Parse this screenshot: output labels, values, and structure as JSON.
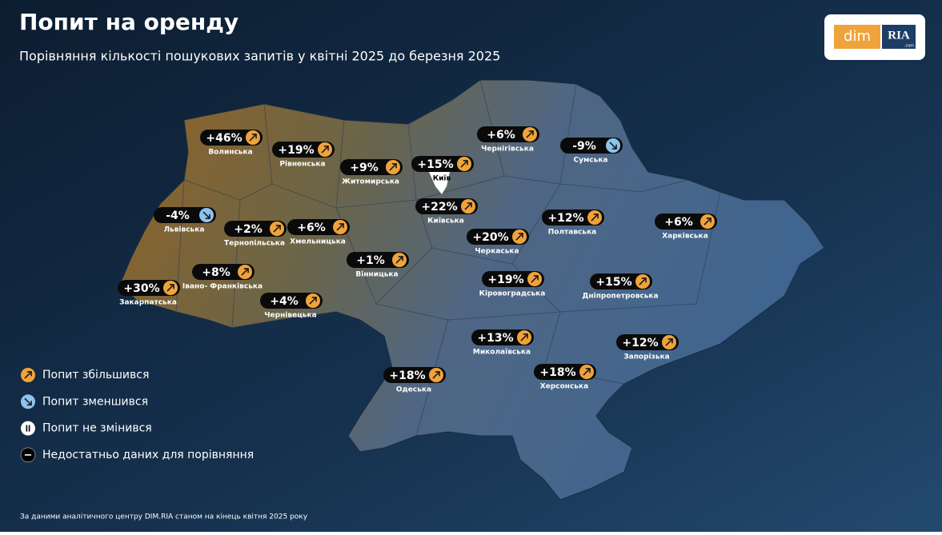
{
  "header": {
    "title": "Попит на оренду",
    "subtitle": "Порівняння кількості пошукових запитів у квітні 2025 до березня 2025"
  },
  "logo": {
    "left": "dim",
    "right": "RIA",
    "suffix": ".com"
  },
  "regions": [
    {
      "name": "Волинська",
      "value": "+46%",
      "trend": "up"
    },
    {
      "name": "Рівненська",
      "value": "+19%",
      "trend": "up"
    },
    {
      "name": "Житомирська",
      "value": "+9%",
      "trend": "up"
    },
    {
      "name": "Київ",
      "value": "+15%",
      "trend": "up"
    },
    {
      "name": "Чернігівська",
      "value": "+6%",
      "trend": "up"
    },
    {
      "name": "Сумська",
      "value": "-9%",
      "trend": "down"
    },
    {
      "name": "Київська",
      "value": "+22%",
      "trend": "up"
    },
    {
      "name": "Полтавська",
      "value": "+12%",
      "trend": "up"
    },
    {
      "name": "Харківська",
      "value": "+6%",
      "trend": "up"
    },
    {
      "name": "Львівська",
      "value": "-4%",
      "trend": "down"
    },
    {
      "name": "Тернопільська",
      "value": "+2%",
      "trend": "up"
    },
    {
      "name": "Хмельницька",
      "value": "+6%",
      "trend": "up"
    },
    {
      "name": "Черкаська",
      "value": "+20%",
      "trend": "up"
    },
    {
      "name": "Вінницька",
      "value": "+1%",
      "trend": "up"
    },
    {
      "name": "Закарпатська",
      "value": "+30%",
      "trend": "up"
    },
    {
      "name": "Івано- Франківська",
      "value": "+8%",
      "trend": "up"
    },
    {
      "name": "Чернівецька",
      "value": "+4%",
      "trend": "up"
    },
    {
      "name": "Кіровоградська",
      "value": "+19%",
      "trend": "up"
    },
    {
      "name": "Дніпропетровська",
      "value": "+15%",
      "trend": "up"
    },
    {
      "name": "Миколаївська",
      "value": "+13%",
      "trend": "up"
    },
    {
      "name": "Запорізька",
      "value": "+12%",
      "trend": "up"
    },
    {
      "name": "Одеська",
      "value": "+18%",
      "trend": "up"
    },
    {
      "name": "Херсонська",
      "value": "+18%",
      "trend": "up"
    }
  ],
  "legend": [
    {
      "label": "Попит збільшився",
      "kind": "up"
    },
    {
      "label": "Попит зменшився",
      "kind": "down"
    },
    {
      "label": "Попит не змінився",
      "kind": "same"
    },
    {
      "label": "Недостатньо даних для порівняння",
      "kind": "none"
    }
  ],
  "footer": {
    "source": "За даними аналітичного центру DIM.RIA станом на кінець квітня 2025 року"
  }
}
